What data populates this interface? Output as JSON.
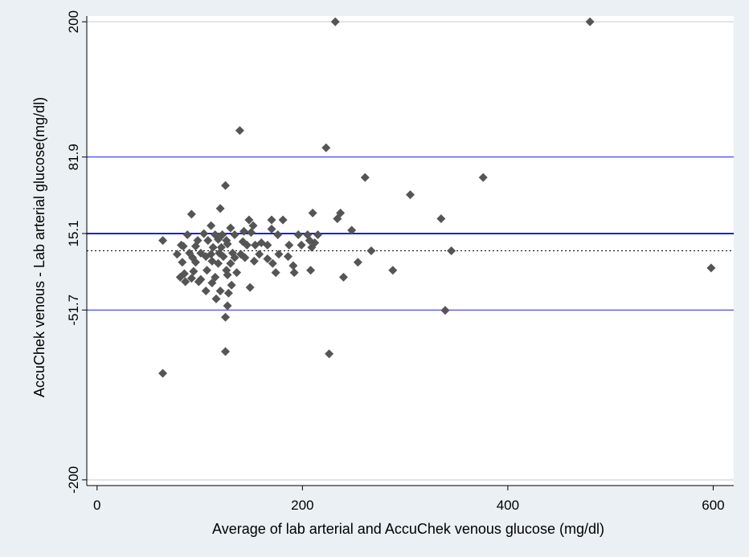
{
  "chart_data": {
    "type": "scatter",
    "xlabel": "Average of lab arterial and AccuChek venous glucose (mg/dl)",
    "ylabel": "AccuChek venous - Lab arterial glucose(mg/dl)",
    "xlim": [
      -10,
      620
    ],
    "ylim": [
      -205,
      205
    ],
    "x_ticks": [
      0,
      200,
      400,
      600
    ],
    "y_ticks": [
      -200,
      -51.7,
      15.1,
      81.9,
      200
    ],
    "x_tick_labels": [
      "0",
      "200",
      "400",
      "600"
    ],
    "y_tick_labels": [
      "-200",
      "-51.7",
      "15.1",
      "81.9",
      "200"
    ],
    "grid": "horizontal at y = 200 and y = -200",
    "legend": "none",
    "reference_lines": [
      {
        "name": "mean difference",
        "y": 15.1,
        "color": "#1a1aff",
        "style": "solid",
        "weight": "thick"
      },
      {
        "name": "upper limit of agreement",
        "y": 81.9,
        "color": "#1a1aff",
        "style": "solid",
        "weight": "thin"
      },
      {
        "name": "lower limit of agreement",
        "y": -51.7,
        "color": "#1a1aff",
        "style": "solid",
        "weight": "thin"
      },
      {
        "name": "zero difference",
        "y": 0,
        "color": "#000000",
        "style": "dotted",
        "weight": "thin"
      }
    ],
    "colors": {
      "background": "#eaf0f3",
      "plot_area": "#ffffff",
      "marker": "#555555",
      "gridline": "#e3e3e3"
    },
    "points": [
      [
        232,
        200
      ],
      [
        480,
        200
      ],
      [
        139,
        105
      ],
      [
        223,
        90
      ],
      [
        261,
        64
      ],
      [
        376,
        64
      ],
      [
        125,
        57
      ],
      [
        305,
        49
      ],
      [
        120,
        37
      ],
      [
        92,
        32
      ],
      [
        210,
        33
      ],
      [
        237,
        33
      ],
      [
        234,
        28
      ],
      [
        148,
        27
      ],
      [
        170,
        27
      ],
      [
        181,
        27
      ],
      [
        335,
        28
      ],
      [
        111,
        22
      ],
      [
        130,
        20
      ],
      [
        143,
        17
      ],
      [
        152,
        22
      ],
      [
        170,
        19
      ],
      [
        248,
        18
      ],
      [
        88,
        14
      ],
      [
        104,
        15
      ],
      [
        115,
        14
      ],
      [
        122,
        14
      ],
      [
        134,
        14
      ],
      [
        150,
        16
      ],
      [
        176,
        14
      ],
      [
        196,
        14
      ],
      [
        205,
        14
      ],
      [
        215,
        14
      ],
      [
        64,
        9
      ],
      [
        82,
        5
      ],
      [
        98,
        9
      ],
      [
        108,
        9
      ],
      [
        118,
        10
      ],
      [
        126,
        9
      ],
      [
        142,
        8
      ],
      [
        160,
        7
      ],
      [
        187,
        5
      ],
      [
        207,
        9
      ],
      [
        212,
        7
      ],
      [
        84,
        4
      ],
      [
        96,
        4
      ],
      [
        113,
        3
      ],
      [
        121,
        3
      ],
      [
        127,
        6
      ],
      [
        146,
        5
      ],
      [
        154,
        5
      ],
      [
        166,
        5
      ],
      [
        199,
        5
      ],
      [
        209,
        3
      ],
      [
        267,
        0
      ],
      [
        345,
        0
      ],
      [
        78,
        -3
      ],
      [
        90,
        -2
      ],
      [
        101,
        -2
      ],
      [
        111,
        -3
      ],
      [
        119,
        -2
      ],
      [
        132,
        -2
      ],
      [
        140,
        -3
      ],
      [
        158,
        -3
      ],
      [
        177,
        -3
      ],
      [
        186,
        -5
      ],
      [
        93,
        -6
      ],
      [
        106,
        -5
      ],
      [
        123,
        -5
      ],
      [
        134,
        -6
      ],
      [
        144,
        -6
      ],
      [
        166,
        -7
      ],
      [
        254,
        -10
      ],
      [
        83,
        -10
      ],
      [
        96,
        -10
      ],
      [
        112,
        -9
      ],
      [
        118,
        -11
      ],
      [
        130,
        -11
      ],
      [
        153,
        -9
      ],
      [
        171,
        -11
      ],
      [
        191,
        -13
      ],
      [
        208,
        -17
      ],
      [
        288,
        -17
      ],
      [
        598,
        -15
      ],
      [
        85,
        -20
      ],
      [
        94,
        -18
      ],
      [
        107,
        -17
      ],
      [
        126,
        -17
      ],
      [
        136,
        -19
      ],
      [
        174,
        -19
      ],
      [
        192,
        -19
      ],
      [
        240,
        -23
      ],
      [
        81,
        -23
      ],
      [
        92,
        -24
      ],
      [
        101,
        -25
      ],
      [
        115,
        -23
      ],
      [
        127,
        -21
      ],
      [
        86,
        -27
      ],
      [
        99,
        -27
      ],
      [
        112,
        -28
      ],
      [
        131,
        -30
      ],
      [
        149,
        -32
      ],
      [
        106,
        -35
      ],
      [
        120,
        -35
      ],
      [
        128,
        -37
      ],
      [
        116,
        -42
      ],
      [
        127,
        -48
      ],
      [
        339,
        -52
      ],
      [
        125,
        -58
      ],
      [
        125,
        -88
      ],
      [
        226,
        -90
      ],
      [
        64,
        -107
      ]
    ]
  }
}
